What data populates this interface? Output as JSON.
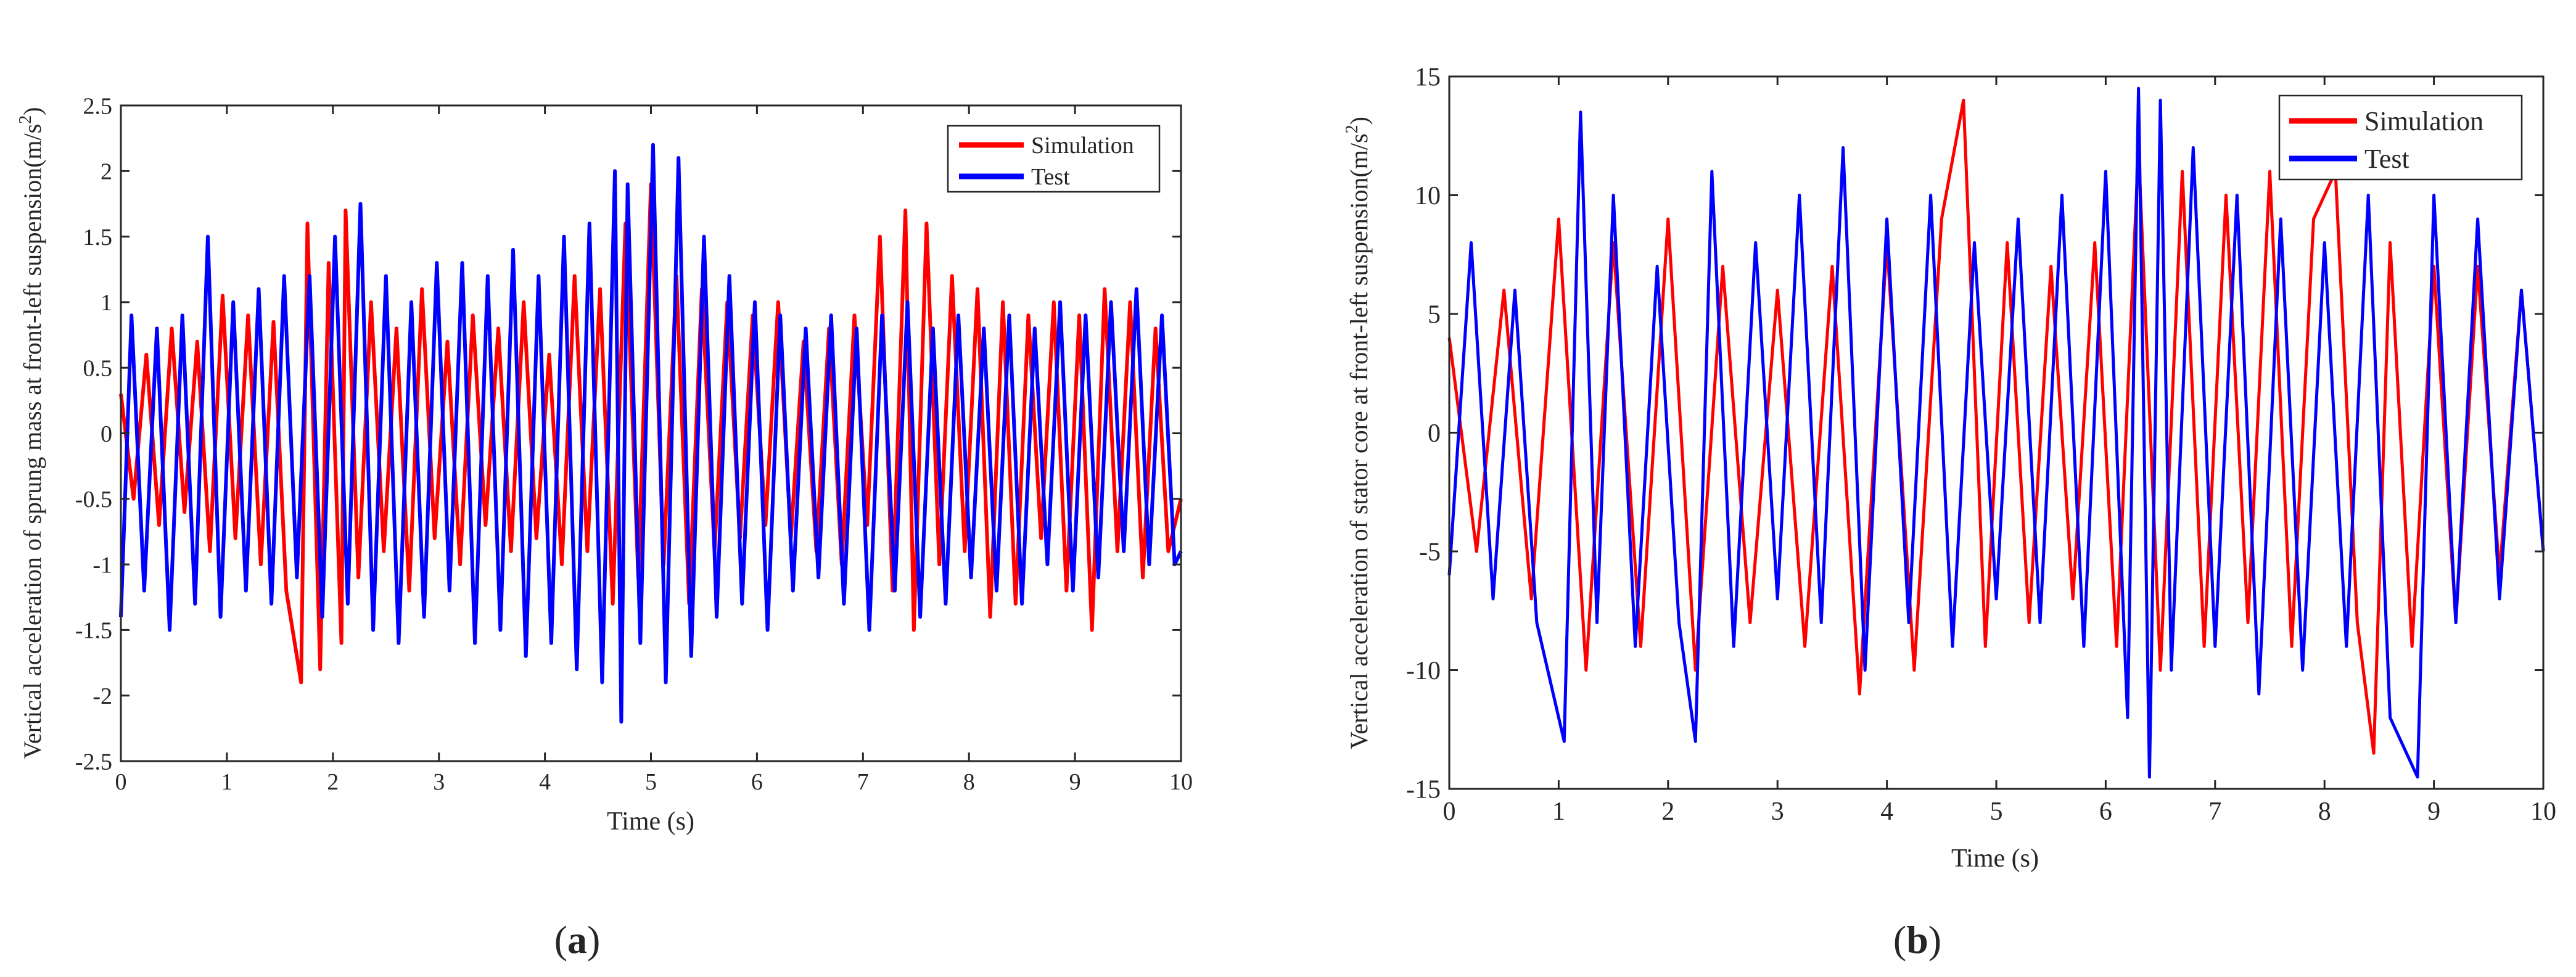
{
  "chart_data": [
    {
      "panel_label": "a",
      "type": "line",
      "title": "",
      "xlabel": "Time (s)",
      "ylabel": "Vertical acceleration of sprung mass at front-left suspension(m/s",
      "ylabel_superscript": "2",
      "ylabel_suffix": ")",
      "xlim": [
        0,
        10
      ],
      "ylim": [
        -2.5,
        2.5
      ],
      "xticks": [
        0,
        1,
        2,
        3,
        4,
        5,
        6,
        7,
        8,
        9,
        10
      ],
      "xtick_labels": [
        "0",
        "1",
        "2",
        "3",
        "4",
        "5",
        "6",
        "7",
        "8",
        "9",
        "10"
      ],
      "yticks": [
        -2.5,
        -2,
        -1.5,
        -1,
        -0.5,
        0,
        0.5,
        1,
        1.5,
        2,
        2.5
      ],
      "ytick_labels": [
        "-2.5",
        "-2",
        "-1.5",
        "-1",
        "-0.5",
        "0",
        "0.5",
        "1",
        "1.5",
        "2",
        "2.5"
      ],
      "grid": false,
      "legend_position": "top-right",
      "series": [
        {
          "name": "Simulation",
          "color": "#ff0000",
          "x": [
            0,
            0.12,
            0.24,
            0.36,
            0.48,
            0.6,
            0.72,
            0.84,
            0.96,
            1.08,
            1.2,
            1.32,
            1.44,
            1.56,
            1.7,
            1.76,
            1.88,
            1.96,
            2.08,
            2.12,
            2.24,
            2.36,
            2.48,
            2.6,
            2.72,
            2.84,
            2.96,
            3.08,
            3.2,
            3.32,
            3.44,
            3.56,
            3.68,
            3.8,
            3.92,
            4.04,
            4.16,
            4.28,
            4.4,
            4.52,
            4.64,
            4.76,
            4.88,
            5,
            5.12,
            5.24,
            5.36,
            5.48,
            5.6,
            5.72,
            5.84,
            5.96,
            6.08,
            6.2,
            6.32,
            6.44,
            6.56,
            6.68,
            6.8,
            6.92,
            7.04,
            7.16,
            7.28,
            7.4,
            7.48,
            7.6,
            7.72,
            7.84,
            7.96,
            8.08,
            8.2,
            8.32,
            8.44,
            8.56,
            8.68,
            8.8,
            8.92,
            9.04,
            9.16,
            9.28,
            9.4,
            9.52,
            9.64,
            9.76,
            9.88,
            10
          ],
          "y": [
            0.3,
            -0.5,
            0.6,
            -0.7,
            0.8,
            -0.6,
            0.7,
            -0.9,
            1.05,
            -0.8,
            0.9,
            -1.0,
            0.85,
            -1.2,
            -1.9,
            1.6,
            -1.8,
            1.3,
            -1.6,
            1.7,
            -1.1,
            1.0,
            -0.9,
            0.8,
            -1.2,
            1.1,
            -0.8,
            0.7,
            -1.0,
            0.9,
            -0.7,
            0.8,
            -0.9,
            1.0,
            -0.8,
            0.6,
            -1.0,
            1.2,
            -0.9,
            1.1,
            -1.3,
            1.6,
            -1.1,
            1.9,
            -1.0,
            1.2,
            -1.3,
            1.1,
            -0.9,
            1.0,
            -0.8,
            0.9,
            -0.7,
            1.0,
            -0.8,
            0.7,
            -0.9,
            0.8,
            -1.0,
            0.9,
            -0.7,
            1.5,
            -1.2,
            1.7,
            -1.5,
            1.6,
            -1.0,
            1.2,
            -0.9,
            1.1,
            -1.4,
            1.0,
            -1.3,
            0.9,
            -0.8,
            1.0,
            -1.2,
            0.9,
            -1.5,
            1.1,
            -0.9,
            1.0,
            -1.1,
            0.8,
            -0.9,
            -0.5
          ]
        },
        {
          "name": "Test",
          "color": "#0000ff",
          "x": [
            0,
            0.1,
            0.22,
            0.34,
            0.46,
            0.58,
            0.7,
            0.82,
            0.94,
            1.06,
            1.18,
            1.3,
            1.42,
            1.54,
            1.66,
            1.78,
            1.9,
            2.02,
            2.14,
            2.26,
            2.38,
            2.5,
            2.62,
            2.74,
            2.86,
            2.98,
            3.1,
            3.22,
            3.34,
            3.46,
            3.58,
            3.7,
            3.82,
            3.94,
            4.06,
            4.18,
            4.3,
            4.42,
            4.54,
            4.66,
            4.72,
            4.78,
            4.9,
            5.02,
            5.14,
            5.26,
            5.38,
            5.5,
            5.62,
            5.74,
            5.86,
            5.98,
            6.1,
            6.22,
            6.34,
            6.46,
            6.58,
            6.7,
            6.82,
            6.94,
            7.06,
            7.18,
            7.3,
            7.42,
            7.54,
            7.66,
            7.78,
            7.9,
            8.02,
            8.14,
            8.26,
            8.38,
            8.5,
            8.62,
            8.74,
            8.86,
            8.98,
            9.1,
            9.22,
            9.34,
            9.46,
            9.58,
            9.7,
            9.82,
            9.94,
            10
          ],
          "y": [
            -1.4,
            0.9,
            -1.2,
            0.8,
            -1.5,
            0.9,
            -1.3,
            1.5,
            -1.4,
            1.0,
            -1.2,
            1.1,
            -1.3,
            1.2,
            -1.1,
            1.2,
            -1.4,
            1.5,
            -1.3,
            1.75,
            -1.5,
            1.2,
            -1.6,
            1.0,
            -1.4,
            1.3,
            -1.2,
            1.3,
            -1.6,
            1.2,
            -1.5,
            1.4,
            -1.7,
            1.2,
            -1.6,
            1.5,
            -1.8,
            1.6,
            -1.9,
            2.0,
            -2.2,
            1.9,
            -1.6,
            2.2,
            -1.9,
            2.1,
            -1.7,
            1.5,
            -1.4,
            1.2,
            -1.3,
            1.0,
            -1.5,
            0.9,
            -1.2,
            0.8,
            -1.1,
            0.9,
            -1.3,
            0.8,
            -1.5,
            0.9,
            -1.2,
            1.0,
            -1.4,
            0.8,
            -1.3,
            0.9,
            -1.1,
            0.8,
            -1.2,
            0.9,
            -1.3,
            0.8,
            -1.0,
            1.0,
            -1.2,
            0.9,
            -1.1,
            1.0,
            -0.9,
            1.1,
            -1.0,
            0.9,
            -1.0,
            -0.9
          ]
        }
      ]
    },
    {
      "panel_label": "b",
      "type": "line",
      "title": "",
      "xlabel": "Time (s)",
      "ylabel": "Vertical acceleration of stator core at front-left suspension(m/s",
      "ylabel_superscript": "2",
      "ylabel_suffix": ")",
      "xlim": [
        0,
        10
      ],
      "ylim": [
        -15,
        15
      ],
      "xticks": [
        0,
        1,
        2,
        3,
        4,
        5,
        6,
        7,
        8,
        9,
        10
      ],
      "xtick_labels": [
        "0",
        "1",
        "2",
        "3",
        "4",
        "5",
        "6",
        "7",
        "8",
        "9",
        "10"
      ],
      "yticks": [
        -15,
        -10,
        -5,
        0,
        5,
        10,
        15
      ],
      "ytick_labels": [
        "-15",
        "-10",
        "-5",
        "0",
        "5",
        "10",
        "15"
      ],
      "grid": false,
      "legend_position": "top-right",
      "series": [
        {
          "name": "Simulation",
          "color": "#ff0000",
          "x": [
            0,
            0.25,
            0.5,
            0.75,
            1,
            1.25,
            1.5,
            1.75,
            2,
            2.25,
            2.5,
            2.75,
            3,
            3.25,
            3.5,
            3.75,
            4,
            4.25,
            4.5,
            4.7,
            4.9,
            5.1,
            5.3,
            5.5,
            5.7,
            5.9,
            6.1,
            6.3,
            6.5,
            6.7,
            6.9,
            7.1,
            7.3,
            7.5,
            7.7,
            7.9,
            8.1,
            8.3,
            8.45,
            8.6,
            8.8,
            9,
            9.2,
            9.4,
            9.6,
            9.8,
            10
          ],
          "y": [
            4,
            -5,
            6,
            -7,
            9,
            -10,
            8,
            -9,
            9,
            -10,
            7,
            -8,
            6,
            -9,
            7,
            -11,
            8,
            -10,
            9,
            14,
            -9,
            8,
            -8,
            7,
            -7,
            8,
            -9,
            12,
            -10,
            11,
            -9,
            10,
            -8,
            11,
            -9,
            9,
            11,
            -8,
            -13.5,
            8,
            -9,
            7,
            -8,
            7,
            -6,
            6,
            -5
          ]
        },
        {
          "name": "Test",
          "color": "#0000ff",
          "x": [
            0,
            0.2,
            0.4,
            0.6,
            0.8,
            1.05,
            1.2,
            1.35,
            1.5,
            1.7,
            1.9,
            2.1,
            2.25,
            2.4,
            2.6,
            2.8,
            3,
            3.2,
            3.4,
            3.6,
            3.8,
            4,
            4.2,
            4.4,
            4.6,
            4.8,
            5,
            5.2,
            5.4,
            5.6,
            5.8,
            6,
            6.2,
            6.3,
            6.4,
            6.5,
            6.6,
            6.8,
            7,
            7.2,
            7.4,
            7.6,
            7.8,
            8,
            8.2,
            8.4,
            8.6,
            8.85,
            9,
            9.2,
            9.4,
            9.6,
            9.8,
            10
          ],
          "y": [
            -6,
            8,
            -7,
            6,
            -8,
            -13,
            13.5,
            -8,
            10,
            -9,
            7,
            -8,
            -13,
            11,
            -9,
            8,
            -7,
            10,
            -8,
            12,
            -10,
            9,
            -8,
            10,
            -9,
            8,
            -7,
            9,
            -8,
            10,
            -9,
            11,
            -12,
            14.5,
            -14.5,
            14,
            -10,
            12,
            -9,
            10,
            -11,
            9,
            -10,
            8,
            -9,
            10,
            -12,
            -14.5,
            10,
            -8,
            9,
            -7,
            6,
            -5
          ]
        }
      ]
    }
  ]
}
